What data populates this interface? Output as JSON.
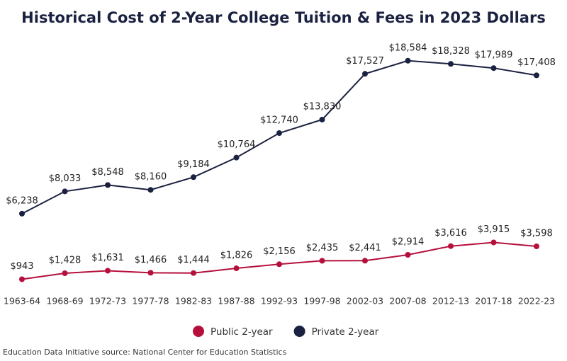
{
  "chart_data": {
    "type": "line",
    "title": "Historical Cost of 2-Year College Tuition & Fees in 2023 Dollars",
    "categories": [
      "1963-64",
      "1968-69",
      "1972-73",
      "1977-78",
      "1982-83",
      "1987-88",
      "1992-93",
      "1997-98",
      "2002-03",
      "2007-08",
      "2012-13",
      "2017-18",
      "2022-23"
    ],
    "series": [
      {
        "name": "Public 2-year",
        "color": "#b5103c",
        "values": [
          943,
          1428,
          1631,
          1466,
          1444,
          1826,
          2156,
          2435,
          2441,
          2914,
          3616,
          3915,
          3598
        ],
        "value_labels": [
          "$943",
          "$1,428",
          "$1,631",
          "$1,466",
          "$1,444",
          "$1,826",
          "$2,156",
          "$2,435",
          "$2,441",
          "$2,914",
          "$3,616",
          "$3,915",
          "$3,598"
        ]
      },
      {
        "name": "Private 2-year",
        "color": "#1b2140",
        "values": [
          6238,
          8033,
          8548,
          8160,
          9184,
          10764,
          12740,
          13830,
          17527,
          18584,
          18328,
          17989,
          17408
        ],
        "value_labels": [
          "$6,238",
          "$8,033",
          "$8,548",
          "$8,160",
          "$9,184",
          "$10,764",
          "$12,740",
          "$13,830",
          "$17,527",
          "$18,584",
          "$18,328",
          "$17,989",
          "$17,408"
        ]
      }
    ],
    "legend": "bottom",
    "source": "Education Data Initiative source: National Center for Education Statistics"
  }
}
